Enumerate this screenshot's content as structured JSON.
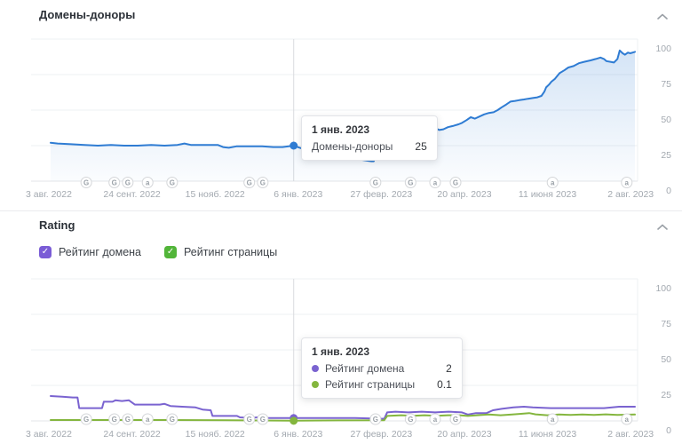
{
  "sections": {
    "donors": {
      "title": "Домены-доноры"
    },
    "rating": {
      "title": "Rating",
      "legend": [
        {
          "label": "Рейтинг домена",
          "checkbox_color": "#7a5cd6",
          "checked": true
        },
        {
          "label": "Рейтинг страницы",
          "checkbox_color": "#52b539",
          "checked": true
        }
      ]
    }
  },
  "tooltips": {
    "donors": {
      "date": "1 янв. 2023",
      "rows": [
        {
          "label": "Домены-доноры",
          "value": "25"
        }
      ]
    },
    "rating": {
      "date": "1 янв. 2023",
      "rows": [
        {
          "label": "Рейтинг домена",
          "value": "2",
          "color": "#7a63d0"
        },
        {
          "label": "Рейтинг страницы",
          "value": "0.1",
          "color": "#84b63e"
        }
      ]
    }
  },
  "axes": {
    "x_labels": [
      "3 авг. 2022",
      "24 сент. 2022",
      "15 нояб. 2022",
      "6 янв. 2023",
      "27 февр. 2023",
      "20 апр. 2023",
      "11 июня 2023",
      "2 авг. 2023"
    ],
    "y_labels": [
      0,
      25,
      50,
      75,
      100
    ]
  },
  "update_markers": [
    {
      "f": 0.061,
      "letter": "G"
    },
    {
      "f": 0.109,
      "letter": "G"
    },
    {
      "f": 0.132,
      "letter": "G"
    },
    {
      "f": 0.166,
      "letter": "a"
    },
    {
      "f": 0.208,
      "letter": "G"
    },
    {
      "f": 0.34,
      "letter": "G"
    },
    {
      "f": 0.363,
      "letter": "G"
    },
    {
      "f": 0.556,
      "letter": "G"
    },
    {
      "f": 0.616,
      "letter": "G"
    },
    {
      "f": 0.658,
      "letter": "a"
    },
    {
      "f": 0.693,
      "letter": "G"
    },
    {
      "f": 0.859,
      "letter": "a"
    },
    {
      "f": 0.986,
      "letter": "a"
    }
  ],
  "hover": {
    "date": "1 янв. 2023",
    "f": 0.416
  },
  "chart_data": [
    {
      "type": "line",
      "title": "Домены-доноры",
      "x_range": [
        "3 авг. 2022",
        "2 авг. 2023"
      ],
      "x_tick_labels": [
        "3 авг. 2022",
        "24 сент. 2022",
        "15 нояб. 2022",
        "6 янв. 2023",
        "27 февр. 2023",
        "20 апр. 2023",
        "11 июня 2023",
        "2 авг. 2023"
      ],
      "ylim": [
        0,
        100
      ],
      "y_ticks": [
        0,
        25,
        50,
        75,
        100
      ],
      "grid": true,
      "legend_position": "none",
      "hovered_point": {
        "x": "1 янв. 2023",
        "value": 25
      },
      "series": [
        {
          "name": "Домены-доноры",
          "color": "#2f7cd3",
          "area_fill": true,
          "hover_value": 25,
          "points": [
            [
              0,
              27
            ],
            [
              0.012,
              26.5
            ],
            [
              0.035,
              26
            ],
            [
              0.058,
              25.5
            ],
            [
              0.081,
              25
            ],
            [
              0.103,
              25.5
            ],
            [
              0.126,
              25
            ],
            [
              0.149,
              25
            ],
            [
              0.172,
              25.5
            ],
            [
              0.195,
              25
            ],
            [
              0.217,
              25.5
            ],
            [
              0.229,
              26.5
            ],
            [
              0.24,
              25.5
            ],
            [
              0.263,
              25.5
            ],
            [
              0.286,
              25.5
            ],
            [
              0.295,
              24
            ],
            [
              0.305,
              23.5
            ],
            [
              0.318,
              24.5
            ],
            [
              0.339,
              24.5
            ],
            [
              0.362,
              24.5
            ],
            [
              0.381,
              24
            ],
            [
              0.397,
              24
            ],
            [
              0.416,
              25
            ],
            [
              0.43,
              23
            ],
            [
              0.439,
              19.5
            ],
            [
              0.45,
              20
            ],
            [
              0.46,
              19
            ],
            [
              0.471,
              18
            ],
            [
              0.48,
              19.5
            ],
            [
              0.489,
              18.5
            ],
            [
              0.503,
              17.5
            ],
            [
              0.518,
              16
            ],
            [
              0.533,
              15
            ],
            [
              0.549,
              14
            ],
            [
              0.553,
              14
            ],
            [
              0.558,
              21
            ],
            [
              0.567,
              23
            ],
            [
              0.579,
              25
            ],
            [
              0.593,
              27
            ],
            [
              0.6,
              29
            ],
            [
              0.606,
              31
            ],
            [
              0.613,
              33
            ],
            [
              0.619,
              35
            ],
            [
              0.625,
              34
            ],
            [
              0.632,
              33.5
            ],
            [
              0.64,
              35
            ],
            [
              0.649,
              37
            ],
            [
              0.655,
              38
            ],
            [
              0.66,
              37
            ],
            [
              0.665,
              36
            ],
            [
              0.672,
              36.5
            ],
            [
              0.68,
              38
            ],
            [
              0.69,
              39
            ],
            [
              0.698,
              40
            ],
            [
              0.704,
              41
            ],
            [
              0.712,
              43
            ],
            [
              0.719,
              45
            ],
            [
              0.726,
              44
            ],
            [
              0.734,
              45.5
            ],
            [
              0.742,
              47
            ],
            [
              0.75,
              48
            ],
            [
              0.758,
              48.5
            ],
            [
              0.765,
              50
            ],
            [
              0.772,
              52
            ],
            [
              0.78,
              54
            ],
            [
              0.787,
              56
            ],
            [
              0.795,
              56.5
            ],
            [
              0.802,
              57
            ],
            [
              0.81,
              57.5
            ],
            [
              0.817,
              58
            ],
            [
              0.825,
              58.5
            ],
            [
              0.833,
              59
            ],
            [
              0.84,
              60
            ],
            [
              0.845,
              63
            ],
            [
              0.848,
              66
            ],
            [
              0.853,
              68
            ],
            [
              0.857,
              70
            ],
            [
              0.863,
              72
            ],
            [
              0.871,
              76
            ],
            [
              0.879,
              78
            ],
            [
              0.886,
              80
            ],
            [
              0.895,
              81
            ],
            [
              0.904,
              83
            ],
            [
              0.913,
              84
            ],
            [
              0.924,
              85
            ],
            [
              0.933,
              86
            ],
            [
              0.941,
              87
            ],
            [
              0.947,
              86
            ],
            [
              0.951,
              84.5
            ],
            [
              0.958,
              84
            ],
            [
              0.964,
              83.5
            ],
            [
              0.97,
              86
            ],
            [
              0.974,
              92
            ],
            [
              0.979,
              90
            ],
            [
              0.983,
              89
            ],
            [
              0.988,
              90.5
            ],
            [
              0.992,
              90
            ],
            [
              1,
              91
            ]
          ]
        }
      ]
    },
    {
      "type": "line",
      "title": "Rating",
      "x_range": [
        "3 авг. 2022",
        "2 авг. 2023"
      ],
      "x_tick_labels": [
        "3 авг. 2022",
        "24 сент. 2022",
        "15 нояб. 2022",
        "6 янв. 2023",
        "27 февр. 2023",
        "20 апр. 2023",
        "11 июня 2023",
        "2 авг. 2023"
      ],
      "ylim": [
        0,
        100
      ],
      "y_ticks": [
        0,
        25,
        50,
        75,
        100
      ],
      "grid": true,
      "legend_position": "top-left",
      "hovered_point": {
        "x": "1 янв. 2023"
      },
      "series": [
        {
          "name": "Рейтинг домена",
          "color": "#7a63d0",
          "area_fill": false,
          "hover_value": 2,
          "points": [
            [
              0,
              17.5
            ],
            [
              0.02,
              17
            ],
            [
              0.038,
              16.5
            ],
            [
              0.046,
              16.5
            ],
            [
              0.049,
              9
            ],
            [
              0.088,
              9
            ],
            [
              0.091,
              13.5
            ],
            [
              0.106,
              13.5
            ],
            [
              0.111,
              14.5
            ],
            [
              0.122,
              14
            ],
            [
              0.134,
              14.5
            ],
            [
              0.144,
              11.5
            ],
            [
              0.164,
              11.5
            ],
            [
              0.187,
              11.5
            ],
            [
              0.195,
              12
            ],
            [
              0.205,
              10.5
            ],
            [
              0.225,
              10
            ],
            [
              0.248,
              9.5
            ],
            [
              0.26,
              8
            ],
            [
              0.274,
              7.5
            ],
            [
              0.277,
              3.5
            ],
            [
              0.319,
              3.5
            ],
            [
              0.324,
              2.5
            ],
            [
              0.343,
              2
            ],
            [
              0.354,
              2.5
            ],
            [
              0.369,
              2
            ],
            [
              0.416,
              2
            ],
            [
              0.46,
              2
            ],
            [
              0.521,
              2
            ],
            [
              0.571,
              1.5
            ],
            [
              0.576,
              6
            ],
            [
              0.59,
              6.5
            ],
            [
              0.612,
              6
            ],
            [
              0.635,
              6.5
            ],
            [
              0.658,
              6
            ],
            [
              0.681,
              6.5
            ],
            [
              0.704,
              6
            ],
            [
              0.714,
              4.5
            ],
            [
              0.728,
              5.5
            ],
            [
              0.746,
              5.5
            ],
            [
              0.757,
              7.5
            ],
            [
              0.772,
              8.5
            ],
            [
              0.792,
              9.5
            ],
            [
              0.81,
              10
            ],
            [
              0.825,
              9.5
            ],
            [
              0.856,
              9
            ],
            [
              0.901,
              9
            ],
            [
              0.947,
              9
            ],
            [
              0.973,
              10
            ],
            [
              1,
              10
            ]
          ]
        },
        {
          "name": "Рейтинг страницы",
          "color": "#84b63e",
          "area_fill": false,
          "hover_value": 0.1,
          "points": [
            [
              0,
              0.6
            ],
            [
              0.1,
              0.6
            ],
            [
              0.2,
              0.6
            ],
            [
              0.3,
              0.5
            ],
            [
              0.416,
              0.1
            ],
            [
              0.5,
              0.4
            ],
            [
              0.571,
              0.5
            ],
            [
              0.576,
              3.5
            ],
            [
              0.6,
              4
            ],
            [
              0.62,
              3.6
            ],
            [
              0.64,
              4
            ],
            [
              0.66,
              3.6
            ],
            [
              0.68,
              4
            ],
            [
              0.7,
              4
            ],
            [
              0.714,
              3.5
            ],
            [
              0.73,
              4
            ],
            [
              0.75,
              4.5
            ],
            [
              0.77,
              4
            ],
            [
              0.79,
              4.5
            ],
            [
              0.805,
              5
            ],
            [
              0.819,
              5.5
            ],
            [
              0.83,
              4.6
            ],
            [
              0.85,
              4
            ],
            [
              0.87,
              4.5
            ],
            [
              0.89,
              4.2
            ],
            [
              0.91,
              4.5
            ],
            [
              0.93,
              4.2
            ],
            [
              0.95,
              4.6
            ],
            [
              0.97,
              4.2
            ],
            [
              1,
              4.5
            ]
          ]
        }
      ]
    }
  ]
}
